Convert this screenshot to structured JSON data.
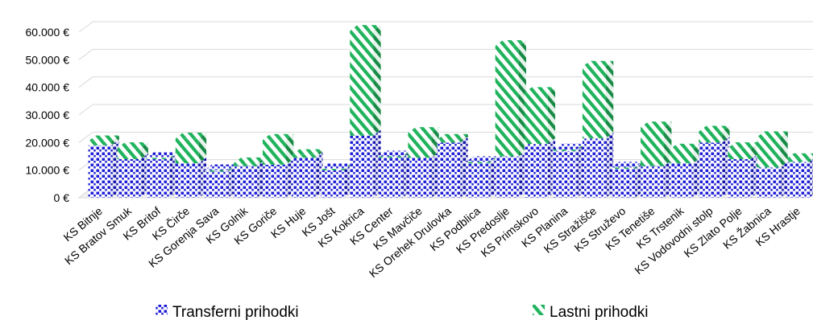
{
  "colors": {
    "transfer": "#1a1ad6",
    "own": "#1fb35c",
    "grid": "#d9d9d9"
  },
  "chart_data": {
    "type": "bar",
    "stacked": true,
    "three_d": true,
    "categories": [
      "KS Bitnje",
      "KS Bratov Smuk",
      "KS Britof",
      "KS Čirče",
      "KS Gorenja Sava",
      "KS Golnik",
      "KS Goriče",
      "KS Huje",
      "KS Jošt",
      "KS Kokrica",
      "KS Center",
      "KS Mavčiče",
      "KS Orehek Drulovka",
      "KS Podblica",
      "KS Predoslje",
      "KS Primskovo",
      "KS Planina",
      "KS Stražišče",
      "KS Struževo",
      "KS Tenetiše",
      "KS Trstenik",
      "KS Vodovodni stolp",
      "KS Zlato Polje",
      "KS Žabnica",
      "KS Hrastje"
    ],
    "series": [
      {
        "name": "Transferni prihodki",
        "pattern": "dots",
        "values": [
          19000,
          14000,
          14000,
          12500,
          9500,
          11500,
          12000,
          14500,
          10000,
          22500,
          14500,
          14500,
          20000,
          12500,
          15000,
          19500,
          17000,
          21500,
          10500,
          11500,
          12500,
          20000,
          14000,
          11000,
          13000
        ]
      },
      {
        "name": "Lastni prihodki",
        "pattern": "stripes",
        "values": [
          1500,
          4000,
          500,
          9000,
          500,
          1000,
          9000,
          1000,
          500,
          38000,
          500,
          9000,
          1000,
          500,
          40000,
          18500,
          500,
          26000,
          500,
          14000,
          5000,
          4000,
          4000,
          11000,
          1000
        ]
      }
    ],
    "ylim": [
      0,
      60000
    ],
    "yticks": [
      "0 €",
      "10.000 €",
      "20.000 €",
      "30.000 €",
      "40.000 €",
      "50.000 €",
      "60.000 €"
    ],
    "ytick_values": [
      0,
      10000,
      20000,
      30000,
      40000,
      50000,
      60000
    ],
    "grid": true,
    "legend_position": "bottom"
  }
}
